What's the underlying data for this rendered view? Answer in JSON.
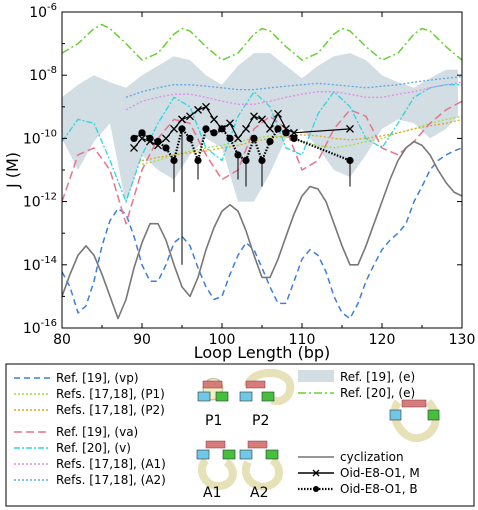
{
  "chart_data": {
    "type": "line",
    "xlabel": "Loop Length (bp)",
    "ylabel": "J (M)",
    "xlim": [
      80,
      130
    ],
    "ylim_log10": [
      -16,
      -6
    ],
    "y_scale": "log",
    "x_ticks": [
      80,
      90,
      100,
      110,
      120,
      130
    ],
    "y_ticks": [
      {
        "exp": -16,
        "label": "10",
        "sup": "-16"
      },
      {
        "exp": -14,
        "label": "10",
        "sup": "-14"
      },
      {
        "exp": -12,
        "label": "10",
        "sup": "-12"
      },
      {
        "exp": -10,
        "label": "10",
        "sup": "-10"
      },
      {
        "exp": -8,
        "label": "10",
        "sup": "-8"
      },
      {
        "exp": -6,
        "label": "10",
        "sup": "-6"
      }
    ],
    "grid": false,
    "band": {
      "name": "Ref. [19], (e)",
      "color": "#d3dde4",
      "x": [
        80,
        82,
        84,
        86,
        88,
        90,
        92,
        94,
        96,
        98,
        100,
        102,
        104,
        106,
        108,
        110,
        112,
        114,
        116,
        118,
        120,
        122,
        124,
        126,
        128,
        129.5
      ],
      "upper": [
        2e-09,
        5e-09,
        1e-08,
        6e-09,
        4e-09,
        1e-08,
        2e-08,
        4e-08,
        3e-08,
        1e-08,
        5e-09,
        2e-08,
        5e-08,
        5e-08,
        2e-08,
        8e-09,
        2e-08,
        4e-08,
        5e-08,
        3e-08,
        1e-08,
        6e-09,
        4e-09,
        8e-09,
        1.5e-08,
        1.5e-08
      ],
      "lower": [
        1e-10,
        1e-11,
        8e-11,
        3e-10,
        8e-13,
        3e-11,
        1e-11,
        5e-12,
        3e-11,
        1e-10,
        5e-11,
        1e-12,
        1e-12,
        8e-12,
        1e-10,
        2e-10,
        5e-11,
        1e-11,
        6e-12,
        3e-11,
        2e-10,
        4e-10,
        3e-10,
        1e-10,
        2e-10,
        5e-10
      ]
    },
    "series": [
      {
        "name": "Ref. [19], (vp)",
        "color": "#3b7fd9",
        "dash": "6,4",
        "width": 1.5,
        "x": [
          80,
          81,
          82,
          83,
          84,
          85,
          86,
          87,
          88,
          89,
          90,
          91,
          92,
          93,
          94,
          95,
          96,
          97,
          98,
          99,
          100,
          101,
          102,
          103,
          104,
          105,
          106,
          107,
          108,
          109,
          110,
          111,
          112,
          113,
          114,
          115,
          116,
          117,
          118,
          119,
          120,
          121,
          122,
          123,
          124,
          125,
          126,
          127,
          128,
          129,
          130
        ],
        "y": [
          6e-15,
          2e-15,
          3e-16,
          5e-16,
          3e-15,
          4e-14,
          2.5e-13,
          6e-13,
          4e-13,
          8e-14,
          1e-14,
          3e-15,
          3e-15,
          1e-14,
          5e-14,
          8e-14,
          4e-14,
          8e-15,
          2e-15,
          8e-16,
          1e-15,
          5e-15,
          2e-14,
          5e-14,
          3e-14,
          8e-15,
          2e-15,
          6e-16,
          6e-16,
          3e-15,
          1.5e-14,
          3e-14,
          2e-14,
          6e-15,
          1e-15,
          3e-16,
          2e-16,
          6e-16,
          3e-15,
          1e-14,
          3e-14,
          6e-14,
          1e-13,
          2e-13,
          1e-12,
          3e-12,
          1e-11,
          2e-11,
          3e-11,
          4e-11,
          5e-11
        ]
      },
      {
        "name": "Refs. [17,18], (P1)",
        "color": "#9be23a",
        "dash": "2,2",
        "width": 1.3,
        "x": [
          90,
          92,
          94,
          96,
          98,
          100,
          102,
          104,
          106,
          108,
          110,
          112,
          114,
          116,
          118,
          120,
          122,
          124,
          126,
          128,
          130
        ],
        "y": [
          1.5e-11,
          2e-11,
          3e-11,
          4e-11,
          5e-11,
          6e-11,
          8e-11,
          1e-10,
          1.2e-10,
          1.1e-10,
          8e-11,
          6e-11,
          5e-11,
          6e-11,
          8e-11,
          1e-10,
          1.5e-10,
          2e-10,
          3e-10,
          4e-10,
          5e-10
        ]
      },
      {
        "name": "Refs. [17,18], (P2)",
        "color": "#e3a51d",
        "dash": "2,2",
        "width": 1.3,
        "x": [
          90,
          92,
          94,
          96,
          98,
          100,
          102,
          104,
          106,
          108,
          110,
          112,
          114,
          116,
          118,
          120,
          122,
          124,
          126,
          128,
          130
        ],
        "y": [
          2e-11,
          2.5e-11,
          3e-11,
          3.5e-11,
          4e-11,
          5e-11,
          6e-11,
          8e-11,
          1e-10,
          1.2e-10,
          1.3e-10,
          1.2e-10,
          1e-10,
          9e-11,
          1e-10,
          1.2e-10,
          1.5e-10,
          2e-10,
          2.5e-10,
          3e-10,
          4e-10
        ]
      },
      {
        "name": "Ref. [19], (va)",
        "color": "#e6758c",
        "dash": "8,4",
        "width": 1.5,
        "x": [
          80,
          82,
          84,
          86,
          88,
          90,
          92,
          94,
          96,
          98,
          100,
          102,
          104,
          106,
          108,
          110,
          112,
          114,
          116,
          118,
          120,
          122,
          124,
          126,
          128,
          130
        ],
        "y": [
          1e-12,
          3e-11,
          5e-11,
          1e-11,
          2e-13,
          1e-11,
          1e-10,
          4e-10,
          3e-10,
          3e-11,
          5e-12,
          1e-11,
          2e-10,
          5e-10,
          2e-10,
          1e-11,
          2e-11,
          2e-10,
          8e-10,
          5e-10,
          5e-11,
          3e-11,
          8e-11,
          3e-10,
          8e-10,
          1.5e-09
        ]
      },
      {
        "name": "Ref. [20], (v)",
        "color": "#2ad6e0",
        "dash": "6,2,2,2",
        "width": 1.3,
        "x": [
          80,
          82,
          84,
          86,
          88,
          90,
          92,
          94,
          96,
          98,
          100,
          102,
          104,
          106,
          108,
          110,
          112,
          114,
          116,
          118,
          120,
          122,
          124,
          126,
          128,
          130
        ],
        "y": [
          8e-11,
          4e-10,
          3e-10,
          2e-11,
          1e-12,
          3e-11,
          3e-10,
          2e-09,
          1e-09,
          5e-11,
          2e-11,
          5e-10,
          3e-09,
          1e-09,
          5e-11,
          3e-11,
          6e-10,
          3e-09,
          1e-09,
          1e-10,
          5e-11,
          3e-10,
          2e-09,
          4e-09,
          5e-09,
          5e-09
        ]
      },
      {
        "name": "Refs. [17,18], (A1)",
        "color": "#e08ce8",
        "dash": "2,2",
        "width": 1.3,
        "x": [
          88,
          90,
          92,
          94,
          96,
          98,
          100,
          102,
          104,
          106,
          108,
          110,
          112,
          114,
          116,
          118,
          120,
          122,
          124,
          126,
          128,
          130
        ],
        "y": [
          8e-10,
          1.5e-09,
          2e-09,
          2.5e-09,
          2.5e-09,
          2e-09,
          1.5e-09,
          1.2e-09,
          1.2e-09,
          1.5e-09,
          2e-09,
          2.5e-09,
          3e-09,
          3e-09,
          2.5e-09,
          2e-09,
          2e-09,
          2.5e-09,
          3e-09,
          4e-09,
          5e-09,
          6e-09
        ]
      },
      {
        "name": "Refs. [17,18], (A2)",
        "color": "#5aa8e6",
        "dash": "2,2",
        "width": 1.3,
        "x": [
          88,
          90,
          92,
          94,
          96,
          98,
          100,
          102,
          104,
          106,
          108,
          110,
          112,
          114,
          116,
          118,
          120,
          122,
          124,
          126,
          128,
          130
        ],
        "y": [
          2e-09,
          3e-09,
          4e-09,
          5e-09,
          5e-09,
          4.5e-09,
          4e-09,
          3.5e-09,
          3.5e-09,
          4e-09,
          4.5e-09,
          5e-09,
          5.5e-09,
          5e-09,
          4.5e-09,
          4e-09,
          4.5e-09,
          5e-09,
          6e-09,
          7e-09,
          8e-09,
          9e-09
        ]
      },
      {
        "name": "Ref. [20], (e)",
        "color": "#66d135",
        "dash": "8,3,2,3",
        "width": 1.5,
        "x": [
          80,
          82,
          84,
          85,
          86,
          88,
          90,
          92,
          94,
          95,
          96,
          98,
          100,
          102,
          104,
          105,
          106,
          108,
          110,
          112,
          114,
          115,
          116,
          118,
          120,
          122,
          124,
          125,
          126,
          128,
          130
        ],
        "y": [
          5e-08,
          1e-07,
          3e-07,
          4e-07,
          3e-07,
          1e-07,
          3e-08,
          5e-08,
          2e-07,
          3e-07,
          2.5e-07,
          8e-08,
          3e-08,
          5e-08,
          2e-07,
          3e-07,
          2.5e-07,
          8e-08,
          3e-08,
          5e-08,
          2e-07,
          3e-07,
          2.5e-07,
          8e-08,
          3e-08,
          5e-08,
          2e-07,
          3e-07,
          2.5e-07,
          8e-08,
          3e-08
        ]
      },
      {
        "name": "cyclization",
        "color": "#777777",
        "dash": "",
        "width": 1.6,
        "x": [
          80,
          81,
          82,
          83,
          84,
          85,
          86,
          87,
          88,
          89,
          90,
          91,
          92,
          93,
          94,
          95,
          96,
          97,
          98,
          99,
          100,
          101,
          102,
          103,
          104,
          105,
          106,
          107,
          108,
          109,
          110,
          111,
          112,
          113,
          114,
          115,
          116,
          117,
          118,
          119,
          120,
          121,
          122,
          123,
          124,
          125,
          126,
          127,
          128,
          129,
          130
        ],
        "y": [
          1e-15,
          5e-15,
          2e-14,
          4e-14,
          2e-14,
          5e-15,
          1e-15,
          2e-16,
          8e-16,
          8e-15,
          5e-14,
          2e-13,
          2e-13,
          6e-14,
          1e-14,
          2e-15,
          1e-15,
          4e-15,
          3e-14,
          1.5e-13,
          5e-13,
          8e-13,
          5e-13,
          1.2e-13,
          2e-14,
          4e-15,
          4e-15,
          1.5e-14,
          8e-14,
          4e-13,
          1.5e-12,
          3e-12,
          2.5e-12,
          1e-12,
          2e-13,
          4e-14,
          1e-14,
          1e-14,
          4e-14,
          2e-13,
          1e-12,
          5e-12,
          2e-11,
          5e-11,
          8e-11,
          6e-11,
          3e-11,
          1e-11,
          4e-12,
          2e-12,
          1.5e-12
        ]
      },
      {
        "name": "Oid-E8-O1, M",
        "color": "#000000",
        "dash": "",
        "width": 1.2,
        "marker": "x",
        "x": [
          89,
          90,
          91,
          92,
          93,
          94,
          95,
          96,
          97,
          98,
          99,
          100,
          101,
          102,
          103,
          104,
          105,
          106,
          107,
          108,
          109,
          116
        ],
        "y": [
          5e-11,
          1e-10,
          8e-11,
          6e-11,
          1e-10,
          2e-10,
          4e-10,
          5e-10,
          8e-10,
          1e-09,
          4e-10,
          2e-10,
          3e-10,
          1e-10,
          2e-10,
          5e-10,
          4e-10,
          2e-10,
          6e-10,
          2e-10,
          1.5e-10,
          2e-10
        ]
      },
      {
        "name": "Oid-E8-O1, B",
        "color": "#000000",
        "dash": "1.5,1.5",
        "width": 2.2,
        "marker": "circle",
        "x": [
          89,
          90,
          91,
          92,
          93,
          94,
          95,
          96,
          97,
          98,
          99,
          100,
          101,
          102,
          103,
          104,
          105,
          106,
          107,
          108,
          109,
          116
        ],
        "y": [
          1e-10,
          1.5e-10,
          1e-10,
          8e-11,
          5e-11,
          2e-11,
          2e-10,
          1e-10,
          2e-11,
          2e-10,
          1.5e-10,
          2e-10,
          1e-10,
          3e-11,
          2e-11,
          1e-10,
          2e-11,
          8e-11,
          2e-10,
          1.5e-10,
          1e-10,
          2e-11
        ],
        "errors_low": [
          null,
          null,
          null,
          null,
          null,
          2e-12,
          1e-14,
          null,
          5e-12,
          null,
          null,
          null,
          null,
          5e-12,
          3e-12,
          null,
          3e-12,
          null,
          null,
          null,
          null,
          3e-12
        ]
      }
    ]
  },
  "legend": {
    "col1": [
      {
        "label": "Ref. [19], (vp)",
        "color": "#3b7fd9",
        "dash": "6,4"
      },
      {
        "label": "Refs. [17,18], (P1)",
        "color": "#9be23a",
        "dash": "2,2"
      },
      {
        "label": "Refs. [17,18], (P2)",
        "color": "#e3a51d",
        "dash": "2,2"
      },
      {
        "label": "Ref. [19], (va)",
        "color": "#e6758c",
        "dash": "8,4"
      },
      {
        "label": "Ref. [20], (v)",
        "color": "#2ad6e0",
        "dash": "6,2,2,2"
      },
      {
        "label": "Refs. [17,18], (A1)",
        "color": "#e08ce8",
        "dash": "2,2"
      },
      {
        "label": "Refs. [17,18], (A2)",
        "color": "#5aa8e6",
        "dash": "2,2"
      }
    ],
    "col2_top": [
      {
        "label": "Ref. [19], (e)",
        "swatch": "band",
        "color": "#d3dde4"
      },
      {
        "label": "Ref. [20], (e)",
        "color": "#66d135",
        "dash": "8,3,2,3"
      }
    ],
    "col2_bottom": [
      {
        "label": "cyclization",
        "color": "#777777",
        "dash": "",
        "marker": "none"
      },
      {
        "label": "Oid-E8-O1, M",
        "color": "#000000",
        "dash": "",
        "marker": "x"
      },
      {
        "label": "Oid-E8-O1, B",
        "color": "#000000",
        "dash": "1.5,1.5",
        "marker": "circle"
      }
    ],
    "diagram_labels": [
      "P1",
      "P2",
      "A1",
      "A2"
    ]
  }
}
